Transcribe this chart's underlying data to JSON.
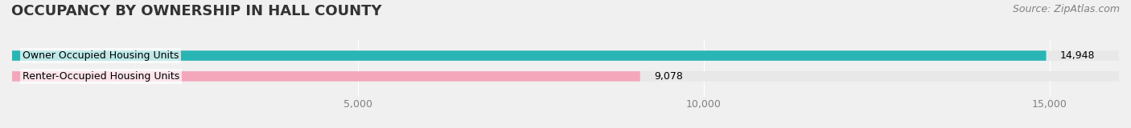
{
  "title": "OCCUPANCY BY OWNERSHIP IN HALL COUNTY",
  "source": "Source: ZipAtlas.com",
  "categories": [
    "Owner Occupied Housing Units",
    "Renter-Occupied Housing Units"
  ],
  "values": [
    14948,
    9078
  ],
  "bar_colors": [
    "#2ab5b5",
    "#f4a7bb"
  ],
  "label_colors": [
    "#2ab5b5",
    "#f4a7bb"
  ],
  "xlim": [
    0,
    16000
  ],
  "xticks": [
    0,
    5000,
    10000,
    15000
  ],
  "xtick_labels": [
    "",
    "5,000",
    "10,000",
    "15,000"
  ],
  "background_color": "#f0f0f0",
  "bar_bg_color": "#e8e8e8",
  "title_fontsize": 13,
  "source_fontsize": 9,
  "bar_label_fontsize": 9,
  "tick_fontsize": 9
}
